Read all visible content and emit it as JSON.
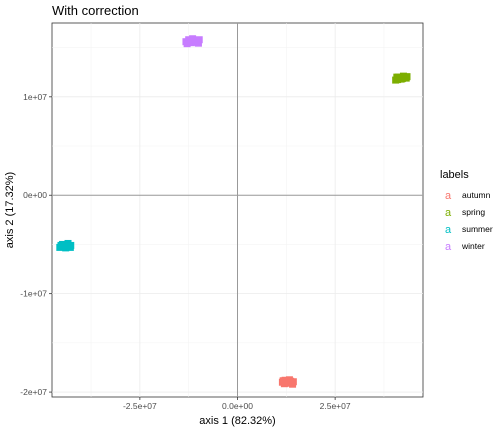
{
  "chart_data": {
    "type": "scatter",
    "title": "With correction",
    "xlabel": "axis 1 (82.32%)",
    "ylabel": "axis 2 (17.32%)",
    "xlim": [
      -47500000,
      47500000
    ],
    "ylim": [
      -20500000,
      17500000
    ],
    "x_ticks": [
      -25000000,
      0,
      25000000
    ],
    "x_tick_labels": [
      "-2.5e+07",
      "0.0e+00",
      "2.5e+07"
    ],
    "y_ticks": [
      -20000000,
      -10000000,
      0,
      10000000
    ],
    "y_tick_labels": [
      "-2e+07",
      "-1e+07",
      "0e+00",
      "1e+07"
    ],
    "grid": true,
    "reference_lines": {
      "x": 0,
      "y": 0
    },
    "legend": {
      "title": "labels",
      "placement": "right",
      "key_glyph": "a"
    },
    "series": [
      {
        "name": "autumn",
        "color": "#F8766D",
        "points": [
          [
            11500000,
            -19000000
          ],
          [
            12200000,
            -18800000
          ],
          [
            12900000,
            -19100000
          ],
          [
            13600000,
            -18900000
          ],
          [
            14100000,
            -19200000
          ],
          [
            12000000,
            -19150000
          ],
          [
            13300000,
            -18750000
          ],
          [
            14300000,
            -18950000
          ],
          [
            11700000,
            -18850000
          ]
        ]
      },
      {
        "name": "spring",
        "color": "#7CAE00",
        "points": [
          [
            40500000,
            11700000
          ],
          [
            41200000,
            12000000
          ],
          [
            41900000,
            11800000
          ],
          [
            42500000,
            12100000
          ],
          [
            43200000,
            11900000
          ],
          [
            41000000,
            11750000
          ],
          [
            42200000,
            11850000
          ],
          [
            43400000,
            12050000
          ],
          [
            40800000,
            12000000
          ]
        ]
      },
      {
        "name": "summer",
        "color": "#00BFC4",
        "points": [
          [
            -45500000,
            -5300000
          ],
          [
            -44800000,
            -5000000
          ],
          [
            -44100000,
            -5200000
          ],
          [
            -43400000,
            -4900000
          ],
          [
            -42700000,
            -5100000
          ],
          [
            -45200000,
            -5100000
          ],
          [
            -44000000,
            -5350000
          ],
          [
            -42800000,
            -5300000
          ],
          [
            -43600000,
            -5150000
          ]
        ]
      },
      {
        "name": "winter",
        "color": "#C77CFF",
        "points": [
          [
            -13200000,
            15600000
          ],
          [
            -12500000,
            15800000
          ],
          [
            -11800000,
            15500000
          ],
          [
            -11100000,
            15700000
          ],
          [
            -10400000,
            15600000
          ],
          [
            -9800000,
            15800000
          ],
          [
            -12900000,
            15400000
          ],
          [
            -11500000,
            15900000
          ],
          [
            -10000000,
            15450000
          ]
        ]
      }
    ]
  }
}
